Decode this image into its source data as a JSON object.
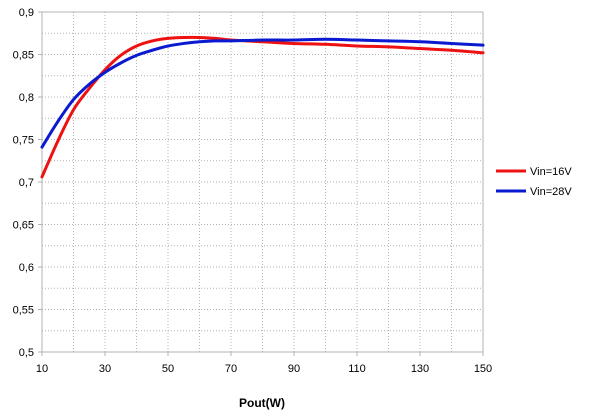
{
  "chart_data": {
    "type": "line",
    "title": "",
    "xlabel": "Pout(W)",
    "ylabel": "",
    "xlim": [
      10,
      150
    ],
    "ylim": [
      0.5,
      0.9
    ],
    "x_ticks": [
      "10",
      "30",
      "50",
      "70",
      "90",
      "110",
      "130",
      "150"
    ],
    "y_ticks": [
      "0,5",
      "0,55",
      "0,6",
      "0,65",
      "0,7",
      "0,75",
      "0,8",
      "0,85",
      "0,9"
    ],
    "grid": true,
    "legend_position": "right",
    "series": [
      {
        "name": "Vin=16V",
        "color": "#ee1111",
        "x": [
          10,
          15,
          20,
          25,
          30,
          35,
          40,
          45,
          50,
          55,
          60,
          65,
          70,
          80,
          90,
          100,
          110,
          120,
          130,
          140,
          150
        ],
        "y": [
          0.706,
          0.748,
          0.785,
          0.81,
          0.832,
          0.849,
          0.86,
          0.866,
          0.869,
          0.87,
          0.87,
          0.869,
          0.867,
          0.865,
          0.863,
          0.862,
          0.86,
          0.859,
          0.857,
          0.855,
          0.852
        ]
      },
      {
        "name": "Vin=28V",
        "color": "#0a1ad0",
        "x": [
          10,
          15,
          20,
          25,
          30,
          35,
          40,
          45,
          50,
          55,
          60,
          65,
          70,
          80,
          90,
          100,
          110,
          120,
          130,
          140,
          150
        ],
        "y": [
          0.741,
          0.771,
          0.797,
          0.815,
          0.829,
          0.84,
          0.849,
          0.855,
          0.86,
          0.863,
          0.865,
          0.866,
          0.866,
          0.867,
          0.867,
          0.868,
          0.867,
          0.866,
          0.865,
          0.863,
          0.861
        ]
      }
    ]
  }
}
